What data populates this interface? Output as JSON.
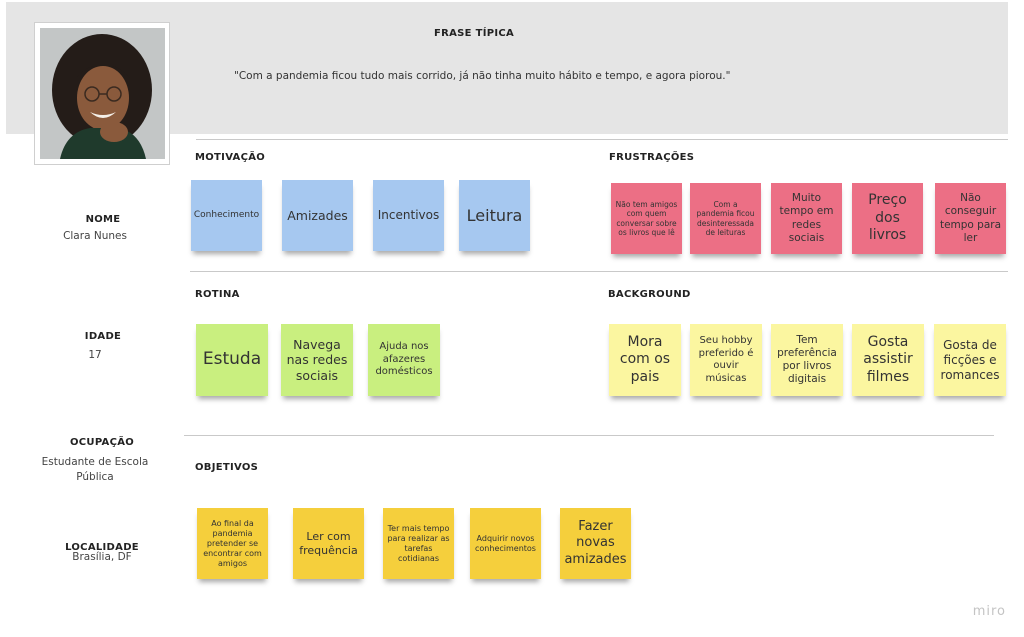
{
  "header": {
    "phrase_title": "FRASE TÍPICA",
    "phrase_text": "\"Com a pandemia ficou tudo mais corrido, já não tinha muito hábito e tempo, e agora piorou.\""
  },
  "profile": {
    "nome_label": "NOME",
    "nome_value": "Clara Nunes",
    "idade_label": "IDADE",
    "idade_value": "17",
    "ocupacao_label": "OCUPAÇÃO",
    "ocupacao_value": "Estudante de Escola Pública",
    "localidade_label": "LOCALIDADE",
    "localidade_value": "Brasília, DF"
  },
  "sections": {
    "motivacao": {
      "title": "MOTIVAÇÃO",
      "notes": [
        "Conhecimento",
        "Amizades",
        "Incentivos",
        "Leitura"
      ]
    },
    "frustracoes": {
      "title": "FRUSTRAÇÕES",
      "notes": [
        "Não tem amigos com quem conversar sobre os livros que lê",
        "Com a pandemia ficou desinteressada de leituras",
        "Muito tempo em redes sociais",
        "Preço dos livros",
        "Não conseguir tempo para ler"
      ]
    },
    "rotina": {
      "title": "ROTINA",
      "notes": [
        "Estuda",
        "Navega nas redes sociais",
        "Ajuda nos afazeres domésticos"
      ]
    },
    "background": {
      "title": "BACKGROUND",
      "notes": [
        "Mora com os pais",
        "Seu hobby preferido é ouvir músicas",
        "Tem preferência por livros digitais",
        "Gosta assistir filmes",
        "Gosta de ficções e romances"
      ]
    },
    "objetivos": {
      "title": "OBJETIVOS",
      "notes": [
        "Ao final da pandemia pretender se encontrar com amigos",
        "Ler com frequência",
        "Ter mais tempo para realizar as tarefas cotidianas",
        "Adquirir novos conhecimentos",
        "Fazer novas amizades"
      ]
    }
  },
  "branding": {
    "logo": "miro"
  },
  "colors": {
    "blue_note": "#a6c8f0",
    "red_note": "#ec6f85",
    "green_note": "#c9ef7f",
    "pale_yellow_note": "#fbf6a0",
    "gold_note": "#f5cf3c",
    "header_band": "#e5e5e5"
  }
}
